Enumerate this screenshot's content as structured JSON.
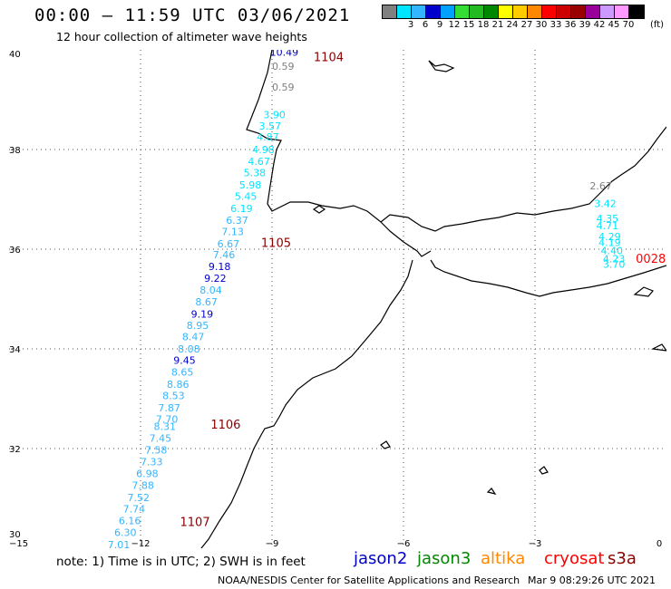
{
  "header": {
    "title": "00:00 – 11:59 UTC 03/06/2021",
    "subtitle": "12 hour collection of altimeter wave heights"
  },
  "colorbar": {
    "labels": [
      "",
      "3",
      "6",
      "9",
      "12",
      "15",
      "18",
      "21",
      "24",
      "27",
      "30",
      "33",
      "36",
      "39",
      "42",
      "45",
      "70"
    ],
    "colors": [
      "#808080",
      "#00e5ff",
      "#33b5ff",
      "#0000cc",
      "#00a0ff",
      "#33dd33",
      "#22bb22",
      "#008800",
      "#ffff00",
      "#ffcc00",
      "#ff8800",
      "#ff0000",
      "#cc0000",
      "#990000",
      "#990099",
      "#cc99ff",
      "#ff99ff",
      "#000000"
    ],
    "units": "(ft)"
  },
  "map": {
    "x_ticks": [
      "−15",
      "−12",
      "−9",
      "−6",
      "−3",
      "0"
    ],
    "y_ticks": [
      "40",
      "38",
      "36",
      "34",
      "32",
      "30"
    ],
    "passes": [
      {
        "text": "1104",
        "color": "#8b0000",
        "lon": -8.05,
        "lat": 39.77
      },
      {
        "text": "1105",
        "color": "#8b0000",
        "lon": -9.25,
        "lat": 36.05
      },
      {
        "text": "1106",
        "color": "#8b0000",
        "lon": -10.4,
        "lat": 32.4
      },
      {
        "text": "1107",
        "color": "#8b0000",
        "lon": -11.1,
        "lat": 30.45
      },
      {
        "text": "0028",
        "color": "#ff0000",
        "lon": -0.7,
        "lat": 35.73
      }
    ],
    "wave_labels": [
      {
        "text": "10.49",
        "color": "#0000cc",
        "lon": -9.05,
        "lat": 39.88
      },
      {
        "text": "0.59",
        "color": "#808080",
        "lon": -9.0,
        "lat": 39.6
      },
      {
        "text": "0.59",
        "color": "#808080",
        "lon": -9.0,
        "lat": 39.18
      },
      {
        "text": "3.90",
        "color": "#00e5ff",
        "lon": -9.2,
        "lat": 38.63
      },
      {
        "text": "3.57",
        "color": "#00e5ff",
        "lon": -9.3,
        "lat": 38.4
      },
      {
        "text": "4.87",
        "color": "#00e5ff",
        "lon": -9.35,
        "lat": 38.18
      },
      {
        "text": "4.98",
        "color": "#00e5ff",
        "lon": -9.45,
        "lat": 37.93
      },
      {
        "text": "4.67",
        "color": "#00e5ff",
        "lon": -9.55,
        "lat": 37.69
      },
      {
        "text": "5.38",
        "color": "#00e5ff",
        "lon": -9.65,
        "lat": 37.46
      },
      {
        "text": "5.98",
        "color": "#00e5ff",
        "lon": -9.75,
        "lat": 37.22
      },
      {
        "text": "5.45",
        "color": "#00e5ff",
        "lon": -9.85,
        "lat": 36.99
      },
      {
        "text": "6.19",
        "color": "#00e5ff",
        "lon": -9.95,
        "lat": 36.75
      },
      {
        "text": "6.37",
        "color": "#33b5ff",
        "lon": -10.05,
        "lat": 36.51
      },
      {
        "text": "7.13",
        "color": "#33b5ff",
        "lon": -10.15,
        "lat": 36.28
      },
      {
        "text": "6.67",
        "color": "#33b5ff",
        "lon": -10.25,
        "lat": 36.04
      },
      {
        "text": "7.46",
        "color": "#33b5ff",
        "lon": -10.35,
        "lat": 35.82
      },
      {
        "text": "9.18",
        "color": "#0000cc",
        "lon": -10.45,
        "lat": 35.58
      },
      {
        "text": "9.22",
        "color": "#0000cc",
        "lon": -10.55,
        "lat": 35.35
      },
      {
        "text": "8.04",
        "color": "#33b5ff",
        "lon": -10.65,
        "lat": 35.11
      },
      {
        "text": "8.67",
        "color": "#33b5ff",
        "lon": -10.75,
        "lat": 34.87
      },
      {
        "text": "9.19",
        "color": "#0000cc",
        "lon": -10.85,
        "lat": 34.63
      },
      {
        "text": "8.95",
        "color": "#33b5ff",
        "lon": -10.95,
        "lat": 34.4
      },
      {
        "text": "8.47",
        "color": "#33b5ff",
        "lon": -11.05,
        "lat": 34.17
      },
      {
        "text": "8.08",
        "color": "#33b5ff",
        "lon": -11.15,
        "lat": 33.93
      },
      {
        "text": "9.45",
        "color": "#0000cc",
        "lon": -11.25,
        "lat": 33.7
      },
      {
        "text": "8.65",
        "color": "#33b5ff",
        "lon": -11.3,
        "lat": 33.46
      },
      {
        "text": "8.86",
        "color": "#33b5ff",
        "lon": -11.4,
        "lat": 33.22
      },
      {
        "text": "8.53",
        "color": "#33b5ff",
        "lon": -11.5,
        "lat": 32.99
      },
      {
        "text": "7.87",
        "color": "#33b5ff",
        "lon": -11.6,
        "lat": 32.75
      },
      {
        "text": "7.70",
        "color": "#33b5ff",
        "lon": -11.65,
        "lat": 32.52
      },
      {
        "text": "8.31",
        "color": "#33b5ff",
        "lon": -11.7,
        "lat": 32.37
      },
      {
        "text": "7.45",
        "color": "#33b5ff",
        "lon": -11.8,
        "lat": 32.14
      },
      {
        "text": "7.58",
        "color": "#33b5ff",
        "lon": -11.9,
        "lat": 31.9
      },
      {
        "text": "7.33",
        "color": "#33b5ff",
        "lon": -12.0,
        "lat": 31.66
      },
      {
        "text": "6.98",
        "color": "#33b5ff",
        "lon": -12.1,
        "lat": 31.43
      },
      {
        "text": "7.88",
        "color": "#33b5ff",
        "lon": -12.2,
        "lat": 31.19
      },
      {
        "text": "7.52",
        "color": "#33b5ff",
        "lon": -12.3,
        "lat": 30.95
      },
      {
        "text": "7.74",
        "color": "#33b5ff",
        "lon": -12.4,
        "lat": 30.72
      },
      {
        "text": "6.16",
        "color": "#33b5ff",
        "lon": -12.5,
        "lat": 30.48
      },
      {
        "text": "6.30",
        "color": "#33b5ff",
        "lon": -12.6,
        "lat": 30.25
      },
      {
        "text": "7.01",
        "color": "#33b5ff",
        "lon": -12.75,
        "lat": 30.0
      },
      {
        "text": "2.67",
        "color": "#808080",
        "lon": -1.75,
        "lat": 37.2
      },
      {
        "text": "3.42",
        "color": "#00e5ff",
        "lon": -1.65,
        "lat": 36.85
      },
      {
        "text": "4.35",
        "color": "#00e5ff",
        "lon": -1.6,
        "lat": 36.55
      },
      {
        "text": "4.71",
        "color": "#00e5ff",
        "lon": -1.6,
        "lat": 36.4
      },
      {
        "text": "4.29",
        "color": "#00e5ff",
        "lon": -1.55,
        "lat": 36.18
      },
      {
        "text": "4.19",
        "color": "#00e5ff",
        "lon": -1.55,
        "lat": 36.06
      },
      {
        "text": "4.40",
        "color": "#00e5ff",
        "lon": -1.5,
        "lat": 35.9
      },
      {
        "text": "4.23",
        "color": "#00e5ff",
        "lon": -1.45,
        "lat": 35.74
      },
      {
        "text": "3.70",
        "color": "#00e5ff",
        "lon": -1.45,
        "lat": 35.63
      }
    ]
  },
  "footer": {
    "note": "note:  1) Time is in UTC;  2) SWH is in feet",
    "missions": [
      {
        "name": "jason2",
        "color": "#0000cc"
      },
      {
        "name": "jason3",
        "color": "#008800"
      },
      {
        "name": "altika",
        "color": "#ff8800"
      },
      {
        "name": "cryosat",
        "color": "#ff0000"
      },
      {
        "name": "s3a",
        "color": "#8b0000"
      }
    ],
    "credit": "NOAA/NESDIS Center for Satellite Applications and Research",
    "timestamp": "Mar  9 08:29:26 UTC 2021"
  }
}
